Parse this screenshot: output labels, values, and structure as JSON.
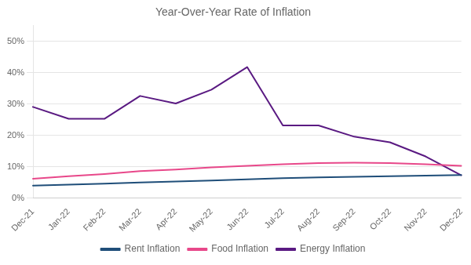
{
  "chart_data": {
    "type": "line",
    "title": "Year-Over-Year Rate of Inflation",
    "categories": [
      "Dec-21",
      "Jan-22",
      "Feb-22",
      "Mar-22",
      "Apr-22",
      "May-22",
      "Jun-22",
      "Jul-22",
      "Aug-22",
      "Sep-22",
      "Oct-22",
      "Nov-22",
      "Dec-22"
    ],
    "series": [
      {
        "name": "Rent Inflation",
        "color": "#1f4e79",
        "values": [
          0.04,
          0.043,
          0.046,
          0.05,
          0.053,
          0.056,
          0.06,
          0.064,
          0.066,
          0.068,
          0.07,
          0.072,
          0.074
        ]
      },
      {
        "name": "Food Inflation",
        "color": "#e8488a",
        "values": [
          0.062,
          0.07,
          0.077,
          0.086,
          0.091,
          0.098,
          0.103,
          0.108,
          0.112,
          0.113,
          0.112,
          0.108,
          0.103
        ]
      },
      {
        "name": "Energy Inflation",
        "color": "#5a1a82",
        "values": [
          0.291,
          0.253,
          0.253,
          0.326,
          0.302,
          0.346,
          0.418,
          0.232,
          0.232,
          0.196,
          0.178,
          0.133,
          0.073
        ]
      }
    ],
    "ylim": [
      0,
      0.55
    ],
    "yticks": [
      {
        "value": 0.0,
        "label": "0%"
      },
      {
        "value": 0.1,
        "label": "10%"
      },
      {
        "value": 0.2,
        "label": "20%"
      },
      {
        "value": 0.3,
        "label": "30%"
      },
      {
        "value": 0.4,
        "label": "40%"
      },
      {
        "value": 0.5,
        "label": "50%"
      }
    ],
    "grid": true,
    "legend": "bottom"
  }
}
